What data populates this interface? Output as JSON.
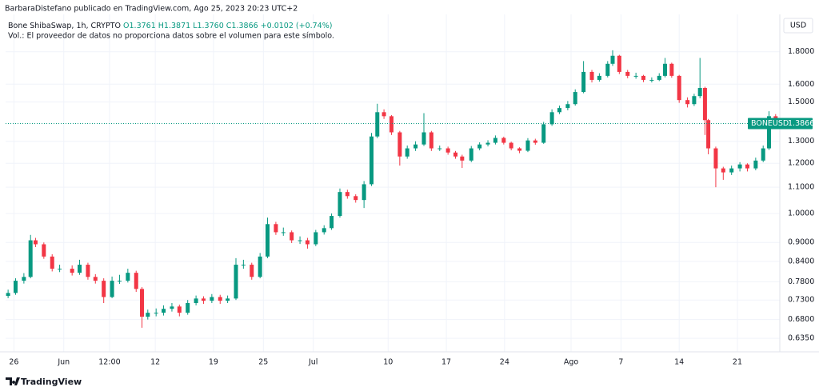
{
  "chart_data": {
    "type": "candlestick",
    "published": "BarbaraDistefano publicado en TradingView.com, Ago 25, 2023 20:23 UTC+2",
    "symbol": "Bone ShibaSwap, 1h, CRYPTO",
    "ohlc_labels": [
      "O1.3761",
      "H1.3871",
      "L1.3760",
      "C1.3866",
      "+0.0102 (+0.74%)"
    ],
    "volume_note": "Vol.: El proveedor de datos no proporciona datos sobre el volumen para este símbolo.",
    "currency": "USD",
    "symbol_label": "BONEUSD",
    "brand": "TradingView",
    "up_color": "#089981",
    "down_color": "#f23645",
    "log_scale": true,
    "grid": true,
    "xlim": [
      145,
      238.1
    ],
    "ylim": [
      0.61,
      2.05
    ],
    "xticks": [
      {
        "value": 146,
        "label": "26"
      },
      {
        "value": 152,
        "label": "Jun"
      },
      {
        "value": 157.5,
        "label": "12:00"
      },
      {
        "value": 163,
        "label": "12"
      },
      {
        "value": 170,
        "label": "19"
      },
      {
        "value": 176,
        "label": "25"
      },
      {
        "value": 182,
        "label": "Jul"
      },
      {
        "value": 191,
        "label": "10"
      },
      {
        "value": 198,
        "label": "17"
      },
      {
        "value": 205,
        "label": "24"
      },
      {
        "value": 213,
        "label": "Ago"
      },
      {
        "value": 219,
        "label": "7"
      },
      {
        "value": 226,
        "label": "14"
      },
      {
        "value": 233,
        "label": "21"
      }
    ],
    "yticks": [
      {
        "value": 0.635,
        "label": "0.6350"
      },
      {
        "value": 0.68,
        "label": "0.6800"
      },
      {
        "value": 0.73,
        "label": "0.7300"
      },
      {
        "value": 0.78,
        "label": "0.7800"
      },
      {
        "value": 0.84,
        "label": "0.8400"
      },
      {
        "value": 0.9,
        "label": "0.9000"
      },
      {
        "value": 1.0,
        "label": "1.0000"
      },
      {
        "value": 1.1,
        "label": "1.1000"
      },
      {
        "value": 1.2,
        "label": "1.2000"
      },
      {
        "value": 1.3,
        "label": "1.3000"
      },
      {
        "value": 1.5,
        "label": "1.5000"
      },
      {
        "value": 1.6,
        "label": "1.6000"
      },
      {
        "value": 1.8,
        "label": "1.8000"
      }
    ],
    "x": [
      145.3,
      146.2,
      147.2,
      148.0,
      148.6,
      149.6,
      150.6,
      151.5,
      153.0,
      153.9,
      154.9,
      155.8,
      156.8,
      157.8,
      158.7,
      159.7,
      160.7,
      161.4,
      162.1,
      163.1,
      164.0,
      165.0,
      165.9,
      166.9,
      167.9,
      168.8,
      169.8,
      170.8,
      171.7,
      172.7,
      173.6,
      174.6,
      175.6,
      176.5,
      177.5,
      178.4,
      179.4,
      180.4,
      181.3,
      182.3,
      183.3,
      184.2,
      185.2,
      186.1,
      187.1,
      188.1,
      189.0,
      189.7,
      190.5,
      191.4,
      192.4,
      193.3,
      194.3,
      195.3,
      196.2,
      197.2,
      198.2,
      199.1,
      199.9,
      201.0,
      202.0,
      203.0,
      203.9,
      204.9,
      205.8,
      206.8,
      207.8,
      208.7,
      209.7,
      210.7,
      211.6,
      212.6,
      213.5,
      214.5,
      215.5,
      216.4,
      217.4,
      218.0,
      218.8,
      219.8,
      220.8,
      221.7,
      222.7,
      223.6,
      224.3,
      225.1,
      226.0,
      227.0,
      227.8,
      228.5,
      229.1,
      229.5,
      230.4,
      231.3,
      232.3,
      233.3,
      234.2,
      235.2,
      236.1,
      236.8,
      237.6
    ],
    "open": [
      0.741,
      0.749,
      0.783,
      0.794,
      0.907,
      0.894,
      0.855,
      0.818,
      0.818,
      0.806,
      0.83,
      0.794,
      0.783,
      0.738,
      0.783,
      0.783,
      0.806,
      0.76,
      0.687,
      0.697,
      0.697,
      0.707,
      0.713,
      0.697,
      0.722,
      0.734,
      0.728,
      0.738,
      0.728,
      0.734,
      0.83,
      0.83,
      0.794,
      0.855,
      0.962,
      0.934,
      0.934,
      0.907,
      0.907,
      0.894,
      0.934,
      0.948,
      0.991,
      1.081,
      1.065,
      1.05,
      1.112,
      1.323,
      1.445,
      1.424,
      1.343,
      1.23,
      1.267,
      1.285,
      1.343,
      1.267,
      1.267,
      1.248,
      1.23,
      1.212,
      1.267,
      1.285,
      1.293,
      1.316,
      1.293,
      1.267,
      1.256,
      1.304,
      1.293,
      1.383,
      1.445,
      1.467,
      1.488,
      1.555,
      1.673,
      1.625,
      1.649,
      1.723,
      1.774,
      1.673,
      1.649,
      1.649,
      1.625,
      1.625,
      1.649,
      1.723,
      1.649,
      1.51,
      1.488,
      1.532,
      1.578,
      1.404,
      1.267,
      1.178,
      1.161,
      1.178,
      1.195,
      1.178,
      1.212,
      1.267,
      1.424
    ],
    "high": [
      0.758,
      0.79,
      0.805,
      0.925,
      0.915,
      0.9,
      0.862,
      0.83,
      0.828,
      0.845,
      0.836,
      0.802,
      0.79,
      0.795,
      0.8,
      0.818,
      0.812,
      0.765,
      0.705,
      0.708,
      0.716,
      0.722,
      0.718,
      0.73,
      0.742,
      0.74,
      0.746,
      0.744,
      0.742,
      0.85,
      0.845,
      0.836,
      0.866,
      0.985,
      0.97,
      0.95,
      0.94,
      0.92,
      0.915,
      0.942,
      0.958,
      1.0,
      1.095,
      1.09,
      1.072,
      1.125,
      1.34,
      1.49,
      1.46,
      1.43,
      1.35,
      1.28,
      1.3,
      1.44,
      1.35,
      1.28,
      1.275,
      1.255,
      1.238,
      1.278,
      1.295,
      1.305,
      1.328,
      1.322,
      1.298,
      1.272,
      1.315,
      1.312,
      1.395,
      1.46,
      1.48,
      1.505,
      1.57,
      1.74,
      1.685,
      1.665,
      1.74,
      1.81,
      1.78,
      1.685,
      1.668,
      1.655,
      1.64,
      1.665,
      1.76,
      1.73,
      1.655,
      1.525,
      1.545,
      1.76,
      1.585,
      1.41,
      1.275,
      1.185,
      1.19,
      1.205,
      1.2,
      1.225,
      1.28,
      1.45,
      1.435
    ],
    "low": [
      0.735,
      0.744,
      0.775,
      0.79,
      0.885,
      0.848,
      0.81,
      0.808,
      0.798,
      0.8,
      0.786,
      0.775,
      0.722,
      0.735,
      0.774,
      0.778,
      0.752,
      0.66,
      0.68,
      0.688,
      0.69,
      0.7,
      0.688,
      0.692,
      0.716,
      0.72,
      0.722,
      0.72,
      0.722,
      0.73,
      0.818,
      0.786,
      0.79,
      0.85,
      0.925,
      0.922,
      0.898,
      0.895,
      0.88,
      0.888,
      0.926,
      0.942,
      0.985,
      1.055,
      1.04,
      1.02,
      1.105,
      1.315,
      1.41,
      1.33,
      1.19,
      1.22,
      1.255,
      1.278,
      1.255,
      1.255,
      1.238,
      1.22,
      1.18,
      1.205,
      1.258,
      1.276,
      1.285,
      1.285,
      1.258,
      1.245,
      1.25,
      1.284,
      1.288,
      1.375,
      1.435,
      1.455,
      1.48,
      1.548,
      1.61,
      1.615,
      1.64,
      1.71,
      1.66,
      1.635,
      1.632,
      1.612,
      1.61,
      1.618,
      1.64,
      1.638,
      1.495,
      1.47,
      1.478,
      1.52,
      1.33,
      1.24,
      1.1,
      1.13,
      1.15,
      1.165,
      1.165,
      1.17,
      1.205,
      1.26,
      1.376
    ],
    "close": [
      0.749,
      0.783,
      0.794,
      0.907,
      0.894,
      0.855,
      0.818,
      0.818,
      0.806,
      0.83,
      0.794,
      0.783,
      0.738,
      0.783,
      0.783,
      0.806,
      0.76,
      0.687,
      0.697,
      0.697,
      0.707,
      0.713,
      0.697,
      0.722,
      0.734,
      0.728,
      0.738,
      0.728,
      0.734,
      0.83,
      0.83,
      0.794,
      0.855,
      0.962,
      0.934,
      0.934,
      0.907,
      0.907,
      0.894,
      0.934,
      0.948,
      0.991,
      1.081,
      1.065,
      1.05,
      1.112,
      1.323,
      1.445,
      1.424,
      1.343,
      1.23,
      1.267,
      1.285,
      1.343,
      1.267,
      1.267,
      1.248,
      1.23,
      1.212,
      1.267,
      1.285,
      1.293,
      1.316,
      1.293,
      1.267,
      1.256,
      1.304,
      1.293,
      1.383,
      1.445,
      1.467,
      1.488,
      1.555,
      1.673,
      1.625,
      1.649,
      1.723,
      1.774,
      1.673,
      1.649,
      1.649,
      1.625,
      1.625,
      1.649,
      1.723,
      1.649,
      1.51,
      1.488,
      1.532,
      1.578,
      1.404,
      1.267,
      1.178,
      1.161,
      1.178,
      1.195,
      1.178,
      1.212,
      1.267,
      1.424,
      1.3866
    ]
  }
}
